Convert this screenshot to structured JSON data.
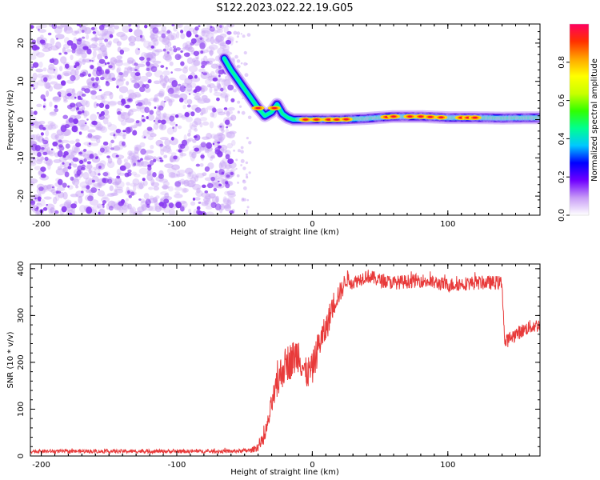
{
  "figure": {
    "title": "S122.2023.022.22.19.G05"
  },
  "chart_data": [
    {
      "type": "heatmap",
      "name": "spectrogram",
      "xlabel": "Height of straight line (km)",
      "ylabel": "Frequency (Hz)",
      "xlim": [
        -208,
        168
      ],
      "ylim": [
        -25,
        25
      ],
      "xticks": [
        -200,
        -100,
        0,
        100
      ],
      "yticks": [
        -20,
        -10,
        0,
        10,
        20
      ],
      "noise_region": [
        -208,
        -58
      ],
      "noise_color": "#8a3cf0",
      "ridge": {
        "x": [
          -65,
          -60,
          -55,
          -50,
          -45,
          -40,
          -35,
          -30,
          -26,
          -22,
          -18,
          -14,
          -10,
          0,
          20,
          40,
          60,
          80,
          100,
          120,
          140,
          168
        ],
        "y": [
          16,
          13,
          10.5,
          8,
          5.5,
          3,
          1,
          2,
          4,
          1.5,
          0.5,
          0,
          0,
          0,
          0,
          0.3,
          0.8,
          0.8,
          0.5,
          0.5,
          0.4,
          0.5
        ]
      },
      "hot_spots_x": [
        -40,
        -28,
        -5,
        3,
        12,
        18,
        25,
        55,
        60,
        72,
        80,
        87,
        95,
        110,
        115,
        120
      ]
    },
    {
      "type": "line",
      "name": "snr",
      "xlabel": "Height of straight line (km)",
      "ylabel": "SNR (10 * v/v)",
      "xlim": [
        -208,
        168
      ],
      "ylim": [
        0,
        410
      ],
      "xticks": [
        -200,
        -100,
        0,
        100
      ],
      "yticks": [
        0,
        100,
        200,
        300,
        400
      ],
      "color": "#e83a3a",
      "series": [
        {
          "name": "SNR",
          "x": [
            -208,
            -150,
            -100,
            -60,
            -45,
            -40,
            -35,
            -32,
            -30,
            -27,
            -25,
            -22,
            -18,
            -15,
            -12,
            -10,
            -8,
            -5,
            0,
            5,
            10,
            15,
            18,
            22,
            25,
            30,
            40,
            50,
            60,
            80,
            100,
            120,
            140,
            142,
            145,
            150,
            160,
            168
          ],
          "y": [
            10,
            10,
            10,
            10,
            12,
            20,
            40,
            80,
            110,
            140,
            160,
            185,
            200,
            205,
            215,
            220,
            200,
            175,
            185,
            240,
            270,
            320,
            340,
            355,
            380,
            370,
            385,
            375,
            370,
            375,
            365,
            370,
            370,
            240,
            250,
            260,
            275,
            280
          ],
          "noise": [
            4,
            4,
            4,
            4,
            5,
            10,
            15,
            20,
            25,
            30,
            40,
            40,
            40,
            40,
            40,
            40,
            35,
            35,
            35,
            35,
            30,
            30,
            25,
            20,
            20,
            15,
            15,
            15,
            15,
            15,
            15,
            15,
            15,
            15,
            15,
            15,
            15,
            15
          ]
        }
      ]
    },
    {
      "type": "colorbar",
      "name": "amplitude-scale",
      "label": "Normalized spectral amplitude",
      "range": [
        0,
        1
      ],
      "ticks": [
        0.0,
        0.2,
        0.4,
        0.6,
        0.8
      ],
      "tick_labels": [
        "0.0",
        "0.2",
        "0.4",
        "0.6",
        "0.8"
      ],
      "colors": [
        "#ffffff",
        "#c89cf6",
        "#6f00ff",
        "#0000ff",
        "#00c8ff",
        "#00ff90",
        "#30ff00",
        "#c8ff00",
        "#ffff00",
        "#ffa500",
        "#ff3000",
        "#ff0060"
      ]
    }
  ]
}
